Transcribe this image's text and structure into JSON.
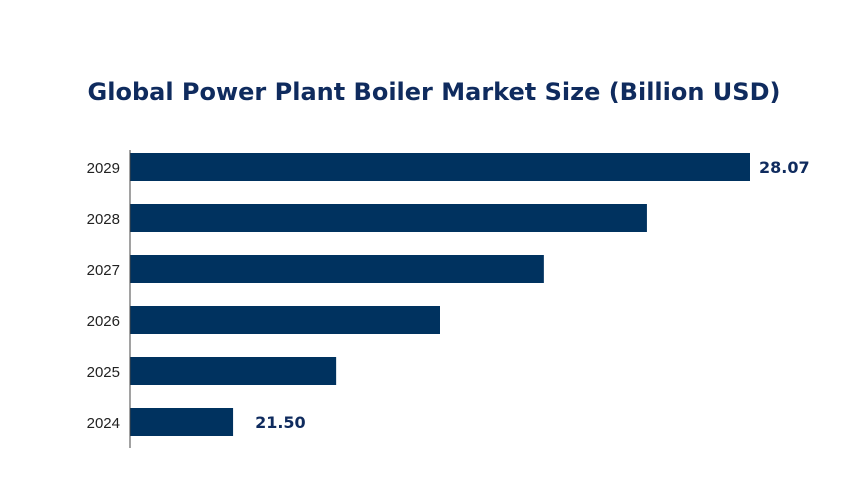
{
  "chart_data": {
    "type": "bar",
    "orientation": "horizontal",
    "title": "Global Power Plant Boiler Market Size (Billion USD)",
    "xlabel": "",
    "ylabel": "",
    "categories": [
      "2029",
      "2028",
      "2027",
      "2026",
      "2025",
      "2024"
    ],
    "values": [
      28.07,
      26.76,
      25.45,
      24.13,
      22.81,
      21.5
    ],
    "data_labels": {
      "2029": "28.07",
      "2024": "21.50"
    },
    "xlim": [
      20.19,
      28.07
    ],
    "grid": false,
    "bar_color": "#00325f",
    "label_color": "#0f2b5e"
  }
}
